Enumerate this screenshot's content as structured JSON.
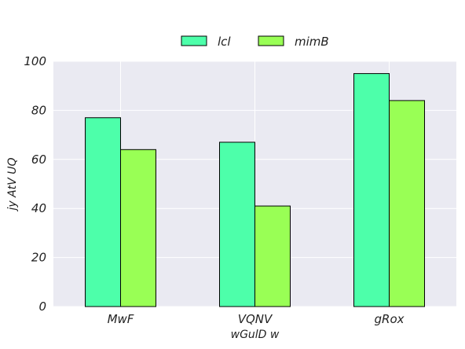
{
  "chart_data": {
    "type": "bar",
    "categories": [
      "MwF",
      "VQNV",
      "gRox"
    ],
    "series": [
      {
        "name": "lcl",
        "values": [
          77,
          67,
          95
        ],
        "color": "#4dffaa"
      },
      {
        "name": "mimB",
        "values": [
          64,
          41,
          84
        ],
        "color": "#99ff55"
      }
    ],
    "xlabel": "wGulD w",
    "ylabel": "jy AtV UQ",
    "ylim": [
      0,
      100
    ],
    "yticks": [
      0,
      20,
      40,
      60,
      80,
      100
    ],
    "grid": true,
    "legend_position": "top-center",
    "background": "#eaeaf2"
  }
}
